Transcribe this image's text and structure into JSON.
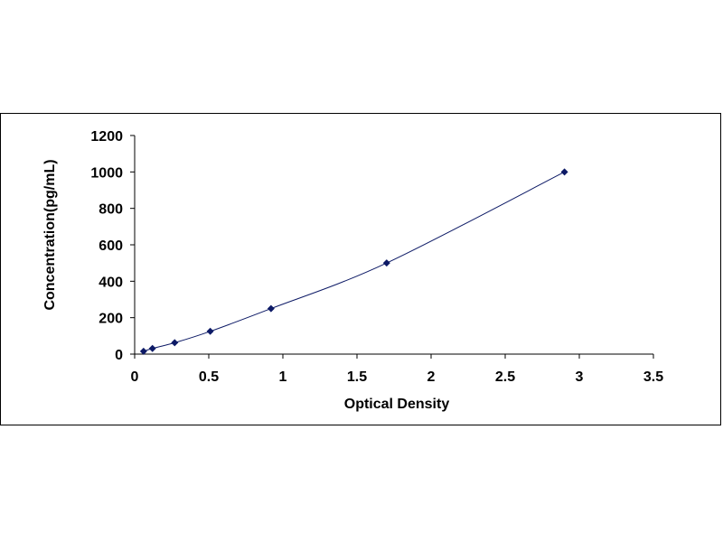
{
  "chart_data": {
    "type": "scatter",
    "title": "",
    "xlabel": "Optical Density",
    "ylabel": "Concentration(pg/mL)",
    "xlim": [
      0,
      3.5
    ],
    "ylim": [
      0,
      1200
    ],
    "x_ticks": [
      "0",
      "0.5",
      "1",
      "1.5",
      "2",
      "2.5",
      "3",
      "3.5"
    ],
    "y_ticks": [
      "0",
      "200",
      "400",
      "600",
      "800",
      "1000",
      "1200"
    ],
    "grid": false,
    "legend": "none",
    "series": [
      {
        "marker": "diamond",
        "trendline": true,
        "x": [
          0.06,
          0.12,
          0.27,
          0.51,
          0.92,
          1.7,
          2.9
        ],
        "y": [
          15.6,
          31.2,
          62.5,
          125,
          250,
          500,
          1000
        ]
      }
    ],
    "colors": {
      "marker": "#0d1a66",
      "line": "#0d1a66",
      "axis": "#000000",
      "frame": "#000000"
    }
  }
}
